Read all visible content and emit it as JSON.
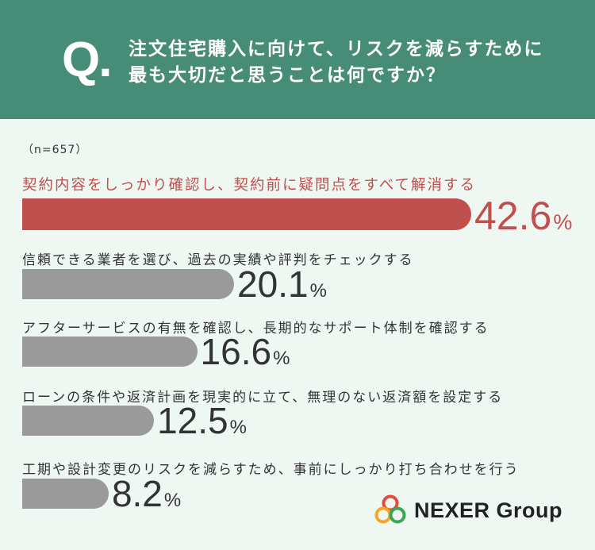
{
  "header": {
    "q_mark": "Q",
    "q_dot": ".",
    "question_line1": "注文住宅購入に向けて、リスクを減らすために",
    "question_line2": "最も大切だと思うことは何ですか？"
  },
  "sample_size": "（n=657）",
  "chart_data": {
    "type": "bar",
    "orientation": "horizontal",
    "unit": "%",
    "categories": [
      "契約内容をしっかり確認し、契約前に疑問点をすべて解消する",
      "信頼できる業者を選び、過去の実績や評判をチェックする",
      "アフターサービスの有無を確認し、長期的なサポート体制を確認する",
      "ローンの条件や返済計画を現実的に立て、無理のない返済額を設定する",
      "工期や設計変更のリスクを減らすため、事前にしっかり打ち合わせを行う"
    ],
    "values": [
      42.6,
      20.1,
      16.6,
      12.5,
      8.2
    ],
    "value_labels": [
      "42.6",
      "20.1",
      "16.6",
      "12.5",
      "8.2"
    ],
    "highlight_index": 0,
    "colors": {
      "highlight": "#c0504d",
      "default": "#9a9a9a"
    }
  },
  "logo": {
    "text": "NEXER Group",
    "colors": [
      "#e84a3a",
      "#f5a623",
      "#3aa655"
    ]
  },
  "colors": {
    "header_bg": "#468c77",
    "page_bg": "#eef7f2"
  }
}
